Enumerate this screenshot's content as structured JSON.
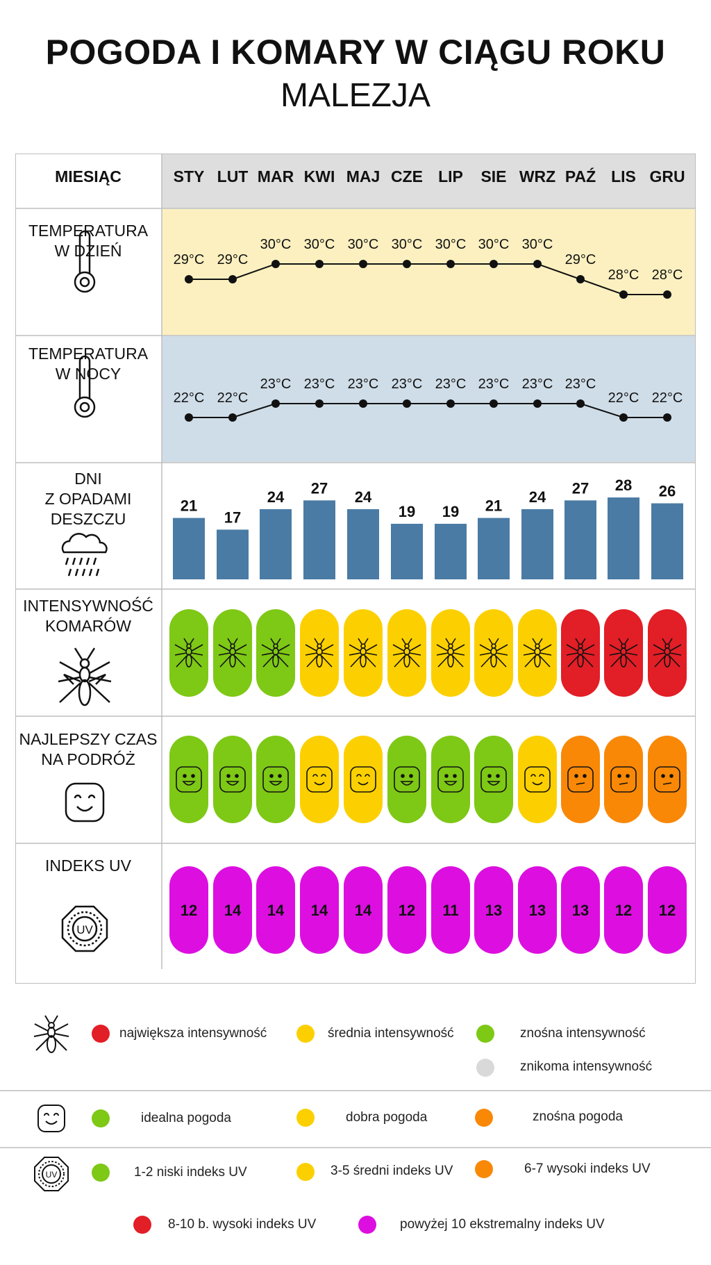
{
  "title": "POGODA I KOMARY W CIĄGU ROKU",
  "subtitle": "MALEZJA",
  "header": {
    "label": "MIESIĄC"
  },
  "rows": {
    "day_temp": "TEMPERATURA\nW DZIEŃ",
    "night_temp": "TEMPERATURA\nW NOCY",
    "rain_days": "DNI\nZ OPADAMI\nDESZCZU",
    "mosquito": "INTENSYWNOŚĆ\nKOMARÓW",
    "travel": "NAJLEPSZY CZAS\nNA PODRÓŻ",
    "uv": "INDEKS UV"
  },
  "colors": {
    "day_bg": "#fcf0c0",
    "night_bg": "#cfdde8",
    "header_bg": "#dedede",
    "bar": "#4a7ba4",
    "green": "#7ec816",
    "yellow": "#fcd000",
    "orange": "#f98807",
    "red": "#e21e26",
    "magenta": "#dc0fe0",
    "grey": "#d9d9d9"
  },
  "chart_data": {
    "type": "table",
    "months": [
      "STY",
      "LUT",
      "MAR",
      "KWI",
      "MAJ",
      "CZE",
      "LIP",
      "SIE",
      "WRZ",
      "PAŹ",
      "LIS",
      "GRU"
    ],
    "day_temperature": {
      "values": [
        29,
        29,
        30,
        30,
        30,
        30,
        30,
        30,
        30,
        29,
        28,
        28
      ],
      "labels": [
        "29°C",
        "29°C",
        "30°C",
        "30°C",
        "30°C",
        "30°C",
        "30°C",
        "30°C",
        "30°C",
        "29°C",
        "28°C",
        "28°C"
      ]
    },
    "night_temperature": {
      "values": [
        22,
        22,
        23,
        23,
        23,
        23,
        23,
        23,
        23,
        23,
        22,
        22
      ],
      "labels": [
        "22°C",
        "22°C",
        "23°C",
        "23°C",
        "23°C",
        "23°C",
        "23°C",
        "23°C",
        "23°C",
        "23°C",
        "22°C",
        "22°C"
      ]
    },
    "rain_days": [
      21,
      17,
      24,
      27,
      24,
      19,
      19,
      21,
      24,
      27,
      28,
      26
    ],
    "mosquito_intensity": [
      "green",
      "green",
      "green",
      "yellow",
      "yellow",
      "yellow",
      "yellow",
      "yellow",
      "yellow",
      "red",
      "red",
      "red"
    ],
    "travel_rating": [
      "green",
      "green",
      "green",
      "yellow",
      "yellow",
      "green",
      "green",
      "green",
      "yellow",
      "orange",
      "orange",
      "orange"
    ],
    "uv_index": [
      12,
      14,
      14,
      14,
      14,
      12,
      11,
      13,
      13,
      13,
      12,
      12
    ],
    "uv_color": "magenta"
  },
  "legend": {
    "mosquito": [
      {
        "color": "red",
        "label": "największa intensywność"
      },
      {
        "color": "yellow",
        "label": "średnia intensywność"
      },
      {
        "color": "green",
        "label": "znośna intensywność"
      },
      {
        "color": "grey",
        "label": "znikoma intensywność"
      }
    ],
    "weather": [
      {
        "color": "green",
        "label": "idealna pogoda"
      },
      {
        "color": "yellow",
        "label": "dobra pogoda"
      },
      {
        "color": "orange",
        "label": "znośna pogoda"
      }
    ],
    "uv": [
      {
        "color": "green",
        "label": "1-2 niski indeks UV"
      },
      {
        "color": "yellow",
        "label": "3-5 średni indeks UV"
      },
      {
        "color": "orange",
        "label": "6-7 wysoki indeks UV"
      },
      {
        "color": "red",
        "label": "8-10 b. wysoki indeks UV"
      },
      {
        "color": "magenta",
        "label": "powyżej 10 ekstremalny indeks UV"
      }
    ]
  }
}
